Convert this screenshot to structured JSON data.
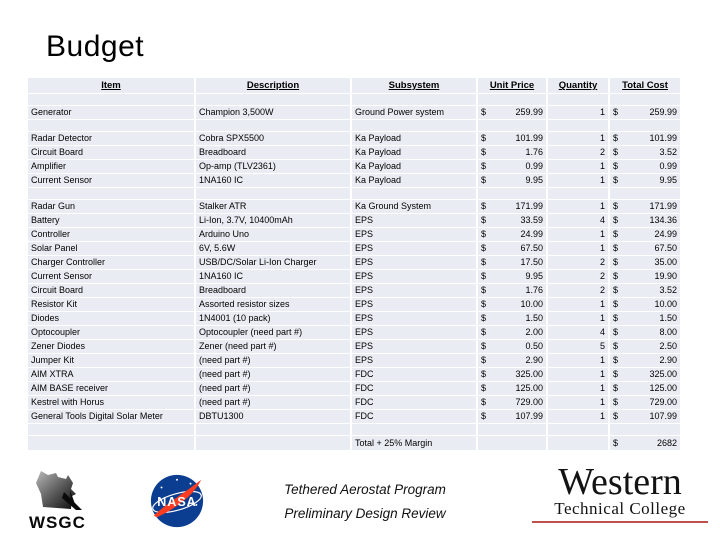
{
  "slide": {
    "title": "Budget"
  },
  "table": {
    "headers": [
      "Item",
      "Description",
      "Subsystem",
      "Unit Price",
      "Quantity",
      "Total Cost"
    ],
    "currency": "$",
    "sections": [
      {
        "rows": [
          {
            "item": "Generator",
            "description": "Champion 3,500W",
            "subsystem": "Ground Power system",
            "unit_price": "259.99",
            "quantity": "1",
            "total_cost": "259.99"
          }
        ]
      },
      {
        "rows": [
          {
            "item": "Radar Detector",
            "description": "Cobra SPX5500",
            "subsystem": "Ka Payload",
            "unit_price": "101.99",
            "quantity": "1",
            "total_cost": "101.99"
          },
          {
            "item": "Circuit Board",
            "description": "Breadboard",
            "subsystem": "Ka Payload",
            "unit_price": "1.76",
            "quantity": "2",
            "total_cost": "3.52"
          },
          {
            "item": "Amplifier",
            "description": "Op-amp (TLV2361)",
            "subsystem": "Ka Payload",
            "unit_price": "0.99",
            "quantity": "1",
            "total_cost": "0.99"
          },
          {
            "item": "Current Sensor",
            "description": "1NA160 IC",
            "subsystem": "Ka Payload",
            "unit_price": "9.95",
            "quantity": "1",
            "total_cost": "9.95"
          }
        ]
      },
      {
        "rows": [
          {
            "item": "Radar Gun",
            "description": "Stalker ATR",
            "subsystem": "Ka Ground System",
            "unit_price": "171.99",
            "quantity": "1",
            "total_cost": "171.99"
          },
          {
            "item": "Battery",
            "description": "Li-Ion, 3.7V, 10400mAh",
            "subsystem": "EPS",
            "unit_price": "33.59",
            "quantity": "4",
            "total_cost": "134.36"
          },
          {
            "item": "Controller",
            "description": "Arduino Uno",
            "subsystem": "EPS",
            "unit_price": "24.99",
            "quantity": "1",
            "total_cost": "24.99"
          },
          {
            "item": "Solar Panel",
            "description": "6V, 5.6W",
            "subsystem": "EPS",
            "unit_price": "67.50",
            "quantity": "1",
            "total_cost": "67.50"
          },
          {
            "item": "Charger Controller",
            "description": "USB/DC/Solar Li-Ion Charger",
            "subsystem": "EPS",
            "unit_price": "17.50",
            "quantity": "2",
            "total_cost": "35.00"
          },
          {
            "item": "Current Sensor",
            "description": "1NA160 IC",
            "subsystem": "EPS",
            "unit_price": "9.95",
            "quantity": "2",
            "total_cost": "19.90"
          },
          {
            "item": "Circuit Board",
            "description": "Breadboard",
            "subsystem": "EPS",
            "unit_price": "1.76",
            "quantity": "2",
            "total_cost": "3.52"
          },
          {
            "item": "Resistor Kit",
            "description": "Assorted resistor sizes",
            "subsystem": "EPS",
            "unit_price": "10.00",
            "quantity": "1",
            "total_cost": "10.00"
          },
          {
            "item": "Diodes",
            "description": "1N4001 (10 pack)",
            "subsystem": "EPS",
            "unit_price": "1.50",
            "quantity": "1",
            "total_cost": "1.50"
          },
          {
            "item": "Optocoupler",
            "description": "Optocoupler (need part #)",
            "subsystem": "EPS",
            "unit_price": "2.00",
            "quantity": "4",
            "total_cost": "8.00"
          },
          {
            "item": "Zener Diodes",
            "description": "Zener (need part #)",
            "subsystem": "EPS",
            "unit_price": "0.50",
            "quantity": "5",
            "total_cost": "2.50"
          },
          {
            "item": "Jumper Kit",
            "description": "(need part #)",
            "subsystem": "EPS",
            "unit_price": "2.90",
            "quantity": "1",
            "total_cost": "2.90"
          },
          {
            "item": "AIM XTRA",
            "description": "(need part #)",
            "subsystem": "FDC",
            "unit_price": "325.00",
            "quantity": "1",
            "total_cost": "325.00"
          },
          {
            "item": "AIM BASE receiver",
            "description": "(need part #)",
            "subsystem": "FDC",
            "unit_price": "125.00",
            "quantity": "1",
            "total_cost": "125.00"
          },
          {
            "item": "Kestrel with Horus",
            "description": "(need part #)",
            "subsystem": "FDC",
            "unit_price": "729.00",
            "quantity": "1",
            "total_cost": "729.00"
          },
          {
            "item": "General Tools Digital Solar Meter",
            "description": "DBTU1300",
            "subsystem": "FDC",
            "unit_price": "107.99",
            "quantity": "1",
            "total_cost": "107.99"
          }
        ]
      }
    ],
    "total": {
      "label": "Total + 25% Margin",
      "value": "2682"
    }
  },
  "footer": {
    "wsgc_label": "WSGC",
    "nasa_label": "NASA",
    "program_line1": "Tethered Aerostat Program",
    "program_line2": "Preliminary Design Review",
    "college_line1": "Western",
    "college_line2": "Technical College"
  },
  "colors": {
    "table_row_bg": "#E9EDF3",
    "western_underline_red": "#C0504D",
    "nasa_blue": "#0B3D91",
    "nasa_red": "#FC3D21"
  }
}
